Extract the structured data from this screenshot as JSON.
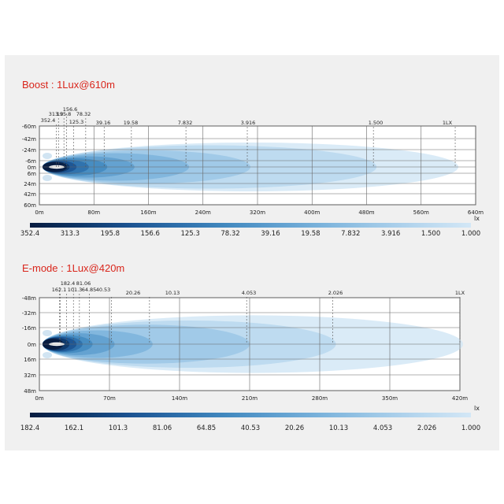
{
  "chart_data": [
    {
      "type": "area",
      "title": "Boost : 1Lux@610m",
      "xlabel": "",
      "ylabel": "",
      "x_ticks": [
        "0m",
        "80m",
        "160m",
        "240m",
        "320m",
        "400m",
        "480m",
        "560m",
        "640m"
      ],
      "x_range": [
        0,
        640
      ],
      "y_ticks": [
        "-60m",
        "-42m",
        "-24m",
        "-6m",
        "0m",
        "6m",
        "24m",
        "42m",
        "60m"
      ],
      "y_range": [
        -60,
        60
      ],
      "grid": true,
      "isolux_ranges_m": [
        {
          "lux": "352.4",
          "range": 25
        },
        {
          "lux": "313.3",
          "range": 28
        },
        {
          "lux": "195.8",
          "range": 36
        },
        {
          "lux": "156.6",
          "range": 40
        },
        {
          "lux": "125.3",
          "range": 50
        },
        {
          "lux": "78.32",
          "range": 68
        },
        {
          "lux": "39.16",
          "range": 95
        },
        {
          "lux": "19.58",
          "range": 135
        },
        {
          "lux": "7.832",
          "range": 215
        },
        {
          "lux": "3.916",
          "range": 305
        },
        {
          "lux": "1.500",
          "range": 490
        },
        {
          "lux": "1LX",
          "range": 610
        }
      ],
      "scale_unit": "lx",
      "scale_labels": [
        "352.4",
        "313.3",
        "195.8",
        "156.6",
        "125.3",
        "78.32",
        "39.16",
        "19.58",
        "7.832",
        "3.916",
        "1.500",
        "1.000"
      ]
    },
    {
      "type": "area",
      "title": "E-mode : 1Lux@420m",
      "xlabel": "",
      "ylabel": "",
      "x_ticks": [
        "0m",
        "70m",
        "140m",
        "210m",
        "280m",
        "350m",
        "420m"
      ],
      "x_range": [
        0,
        420
      ],
      "y_ticks": [
        "-48m",
        "-32m",
        "-16m",
        "0m",
        "16m",
        "32m",
        "48m"
      ],
      "y_range": [
        -48,
        48
      ],
      "grid": true,
      "isolux_ranges_m": [
        {
          "lux": "162.1",
          "range": 21
        },
        {
          "lux": "182.4",
          "range": 20
        },
        {
          "lux": "101.3",
          "range": 27
        },
        {
          "lux": "81.06",
          "range": 34
        },
        {
          "lux": "64.85",
          "range": 40
        },
        {
          "lux": "40.53",
          "range": 50
        },
        {
          "lux": "20.26",
          "range": 72
        },
        {
          "lux": "10.13",
          "range": 110
        },
        {
          "lux": "4.053",
          "range": 207
        },
        {
          "lux": "2.026",
          "range": 293
        },
        {
          "lux": "1LX",
          "range": 420
        }
      ],
      "scale_unit": "lx",
      "scale_labels": [
        "182.4",
        "162.1",
        "101.3",
        "81.06",
        "64.85",
        "40.53",
        "20.26",
        "10.13",
        "4.053",
        "2.026",
        "1.000"
      ]
    }
  ],
  "colors": {
    "title": "#d9261c",
    "gradient": [
      "#081c40",
      "#0d3566",
      "#1b5290",
      "#2d6eaa",
      "#4289bf",
      "#5f9fcf",
      "#7db4dc",
      "#9cc7e6",
      "#b9d8ef",
      "#d3e7f6"
    ]
  }
}
